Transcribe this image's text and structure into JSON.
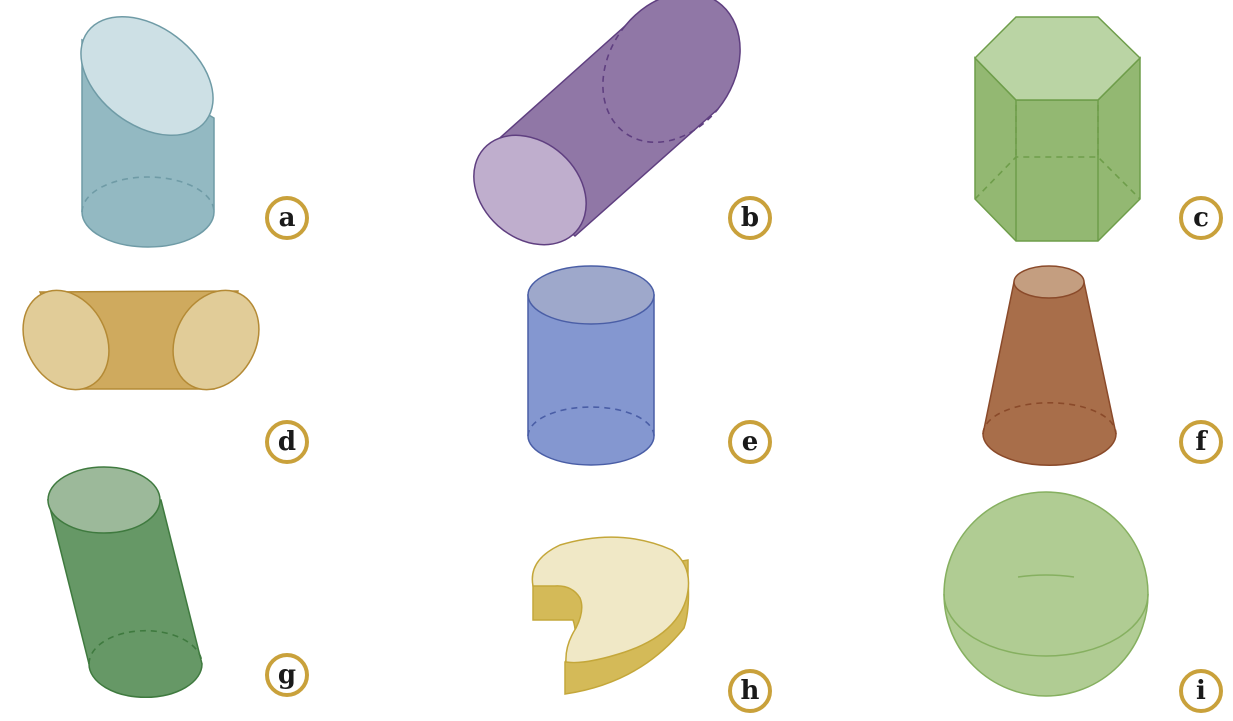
{
  "shapes": [
    {
      "id": "a",
      "label": "a",
      "kind": "obliquely-cut-cylinder",
      "fill": "#93b9c2",
      "top_fill": "#cde0e5",
      "stroke": "#6f9ba6"
    },
    {
      "id": "b",
      "label": "b",
      "kind": "tilted-cylinder",
      "fill": "#9077a6",
      "top_fill": "#bfaecd",
      "stroke": "#5f3f80"
    },
    {
      "id": "c",
      "label": "c",
      "kind": "hexagonal-prism",
      "fill": "#93b872",
      "top_fill": "#bad4a4",
      "stroke": "#6e9d4a"
    },
    {
      "id": "d",
      "label": "d",
      "kind": "cylinder-cut-both-ends",
      "fill": "#cfaa5e",
      "top_fill": "#e1cc98",
      "stroke": "#b48a35"
    },
    {
      "id": "e",
      "label": "e",
      "kind": "cylinder",
      "fill": "#8497d0",
      "top_fill": "#9ea8cb",
      "stroke": "#4a5ea6"
    },
    {
      "id": "f",
      "label": "f",
      "kind": "truncated-cone",
      "fill": "#a86e4a",
      "top_fill": "#c49e80",
      "stroke": "#8a4a2a"
    },
    {
      "id": "g",
      "label": "g",
      "kind": "slanted-cylinder",
      "fill": "#669866",
      "top_fill": "#9cb99a",
      "stroke": "#3f7a3f"
    },
    {
      "id": "h",
      "label": "h",
      "kind": "irregular-slab",
      "fill": "#d4ba58",
      "top_fill": "#f0e8c6",
      "stroke": "#c4a73a"
    },
    {
      "id": "i",
      "label": "i",
      "kind": "sphere",
      "fill": "#b0cc93",
      "top_fill": "#b0cc93",
      "stroke": "#86b060"
    }
  ]
}
